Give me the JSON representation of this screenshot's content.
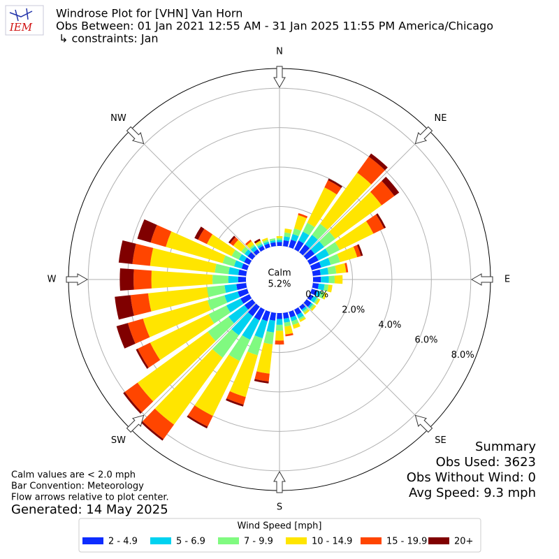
{
  "chart_data": {
    "type": "windrose",
    "logo_text": "IEM",
    "title": "Windrose Plot for [VHN] Van Horn",
    "subtitle": "Obs Between: 01 Jan 2021 12:55 AM - 31 Jan 2025 11:55 PM America/Chicago",
    "constraints": "↳ constraints: Jan",
    "calm_label": "Calm",
    "calm_value": 5.2,
    "calm_value_label": "5.2%",
    "theta": [
      0,
      10,
      20,
      30,
      40,
      50,
      60,
      70,
      80,
      90,
      100,
      110,
      120,
      130,
      140,
      150,
      160,
      170,
      180,
      190,
      200,
      210,
      220,
      230,
      240,
      250,
      260,
      270,
      280,
      290,
      300,
      310,
      320,
      330,
      340,
      350
    ],
    "thetaticks": [
      {
        "value": 0,
        "label": "N"
      },
      {
        "value": 45,
        "label": "NE"
      },
      {
        "value": 90,
        "label": "E"
      },
      {
        "value": 135,
        "label": "SE"
      },
      {
        "value": 180,
        "label": "S"
      },
      {
        "value": 225,
        "label": "SW"
      },
      {
        "value": 270,
        "label": "W"
      },
      {
        "value": 315,
        "label": "NW"
      }
    ],
    "rlim": [
      0,
      9
    ],
    "rticks": [
      {
        "value": 0,
        "label": "0.0%"
      },
      {
        "value": 2,
        "label": "2.0%"
      },
      {
        "value": 4,
        "label": "4.0%"
      },
      {
        "value": 6,
        "label": "6.0%"
      },
      {
        "value": 8,
        "label": "8.0%"
      }
    ],
    "grid": true,
    "legend_title": "Wind Speed [mph]",
    "series": [
      {
        "name": "2 - 4.9",
        "color": "#0d2cff",
        "values": [
          0.2,
          0.3,
          0.4,
          0.5,
          0.5,
          0.5,
          0.5,
          0.5,
          0.4,
          0.4,
          0.3,
          0.3,
          0.2,
          0.3,
          0.2,
          0.3,
          0.3,
          0.3,
          0.3,
          0.4,
          0.5,
          0.6,
          0.6,
          0.5,
          0.5,
          0.5,
          0.5,
          0.4,
          0.4,
          0.3,
          0.3,
          0.3,
          0.2,
          0.2,
          0.2,
          0.2
        ]
      },
      {
        "name": "5 - 6.9",
        "color": "#00d2f0",
        "values": [
          0.1,
          0.2,
          0.3,
          0.5,
          0.6,
          0.6,
          0.6,
          0.5,
          0.4,
          0.4,
          0.3,
          0.2,
          0.2,
          0.1,
          0.1,
          0.2,
          0.2,
          0.2,
          0.3,
          0.6,
          0.9,
          1.1,
          1.2,
          1.0,
          0.8,
          0.7,
          0.6,
          0.5,
          0.5,
          0.4,
          0.3,
          0.2,
          0.2,
          0.1,
          0.1,
          0.1
        ]
      },
      {
        "name": "7 - 9.9",
        "color": "#80fa80",
        "values": [
          0.1,
          0.2,
          0.3,
          0.5,
          0.7,
          0.7,
          0.6,
          0.5,
          0.4,
          0.3,
          0.2,
          0.2,
          0.1,
          0.1,
          0.1,
          0.1,
          0.2,
          0.2,
          0.3,
          0.6,
          0.9,
          1.2,
          1.4,
          1.3,
          1.0,
          0.9,
          0.9,
          0.8,
          0.7,
          0.6,
          0.4,
          0.2,
          0.1,
          0.1,
          0.1,
          0.1
        ]
      },
      {
        "name": "10 - 14.9",
        "color": "#ffe500",
        "values": [
          0.1,
          0.2,
          0.7,
          2.0,
          3.2,
          2.9,
          1.9,
          0.9,
          0.5,
          0.4,
          0.2,
          0.1,
          0.1,
          0.1,
          0.1,
          0.1,
          0.2,
          0.4,
          0.5,
          1.5,
          2.2,
          3.1,
          4.2,
          4.4,
          3.3,
          3.4,
          3.0,
          3.1,
          3.3,
          3.0,
          1.4,
          0.5,
          0.2,
          0.1,
          0.1,
          0
        ]
      },
      {
        "name": "15 - 19.9",
        "color": "#ff4500",
        "values": [
          0,
          0,
          0.1,
          0.4,
          1.0,
          0.8,
          0.6,
          0.2,
          0.1,
          0,
          0,
          0,
          0,
          0,
          0,
          0,
          0,
          0.1,
          0.2,
          0.4,
          0.4,
          0.6,
          0.9,
          0.8,
          0.7,
          0.8,
          0.9,
          0.9,
          0.9,
          0.8,
          0.5,
          0.2,
          0.1,
          0,
          0,
          0
        ]
      },
      {
        "name": "20+",
        "color": "#800000",
        "values": [
          0,
          0,
          0,
          0.1,
          0.2,
          0.3,
          0.1,
          0.1,
          0,
          0,
          0,
          0,
          0,
          0,
          0,
          0,
          0,
          0,
          0,
          0.1,
          0.1,
          0.1,
          0.1,
          0.1,
          0.1,
          0.6,
          0.8,
          0.7,
          0.7,
          0.7,
          0.2,
          0.1,
          0,
          0.1,
          0,
          0
        ]
      }
    ],
    "notes": [
      "Calm values are < 2.0 mph",
      "Bar Convention: Meteorology",
      "Flow arrows relative to plot center."
    ],
    "generated": "Generated: 14 May 2025",
    "summary": [
      "Summary",
      "Obs Used: 3623",
      "Obs Without Wind: 0",
      "Avg Speed: 9.3 mph"
    ]
  }
}
